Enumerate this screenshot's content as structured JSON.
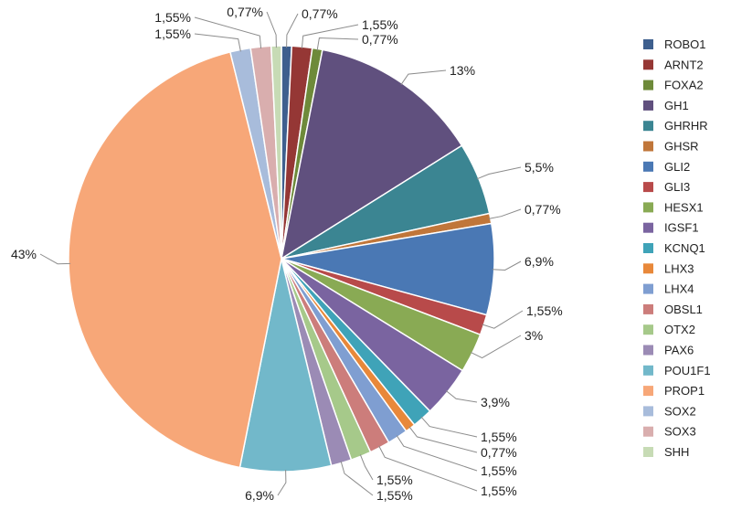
{
  "chart_data": {
    "type": "pie",
    "legend_position": "right",
    "slices": [
      {
        "name": "ROBO1",
        "value": 0.77,
        "label": "0,77%",
        "color": "#3e5f8e"
      },
      {
        "name": "ARNT2",
        "value": 1.55,
        "label": "1,55%",
        "color": "#953735"
      },
      {
        "name": "FOXA2",
        "value": 0.77,
        "label": "0,77%",
        "color": "#6e8a3a"
      },
      {
        "name": "GH1",
        "value": 13,
        "label": "13%",
        "color": "#60507e"
      },
      {
        "name": "GHRHR",
        "value": 5.5,
        "label": "5,5%",
        "color": "#3b8592"
      },
      {
        "name": "GHSR",
        "value": 0.77,
        "label": "0,77%",
        "color": "#c0763a"
      },
      {
        "name": "GLI2",
        "value": 6.9,
        "label": "6,9%",
        "color": "#4a78b4"
      },
      {
        "name": "GLI3",
        "value": 1.55,
        "label": "1,55%",
        "color": "#b84a4a"
      },
      {
        "name": "HESX1",
        "value": 3,
        "label": "3%",
        "color": "#89aa54"
      },
      {
        "name": "IGSF1",
        "value": 3.9,
        "label": "3,9%",
        "color": "#7a64a0"
      },
      {
        "name": "KCNQ1",
        "value": 1.55,
        "label": "1,55%",
        "color": "#3fa3b8"
      },
      {
        "name": "LHX3",
        "value": 0.77,
        "label": "0,77%",
        "color": "#e8883a"
      },
      {
        "name": "LHX4",
        "value": 1.55,
        "label": "1,55%",
        "color": "#7f9ed1"
      },
      {
        "name": "OBSL1",
        "value": 1.55,
        "label": "1,55%",
        "color": "#cc7d7b"
      },
      {
        "name": "OTX2",
        "value": 1.55,
        "label": "1,55%",
        "color": "#a6c98a"
      },
      {
        "name": "PAX6",
        "value": 1.55,
        "label": "1,55%",
        "color": "#9b8bb5"
      },
      {
        "name": "POU1F1",
        "value": 6.9,
        "label": "6,9%",
        "color": "#72b8ca"
      },
      {
        "name": "PROP1",
        "value": 43,
        "label": "43%",
        "color": "#f7a778"
      },
      {
        "name": "SOX2",
        "value": 1.55,
        "label": "1,55%",
        "color": "#a8bcdb"
      },
      {
        "name": "SOX3",
        "value": 1.55,
        "label": "1,55%",
        "color": "#d9aeae"
      },
      {
        "name": "SHH",
        "value": 0.77,
        "label": "0,77%",
        "color": "#c7dbb5"
      }
    ]
  }
}
